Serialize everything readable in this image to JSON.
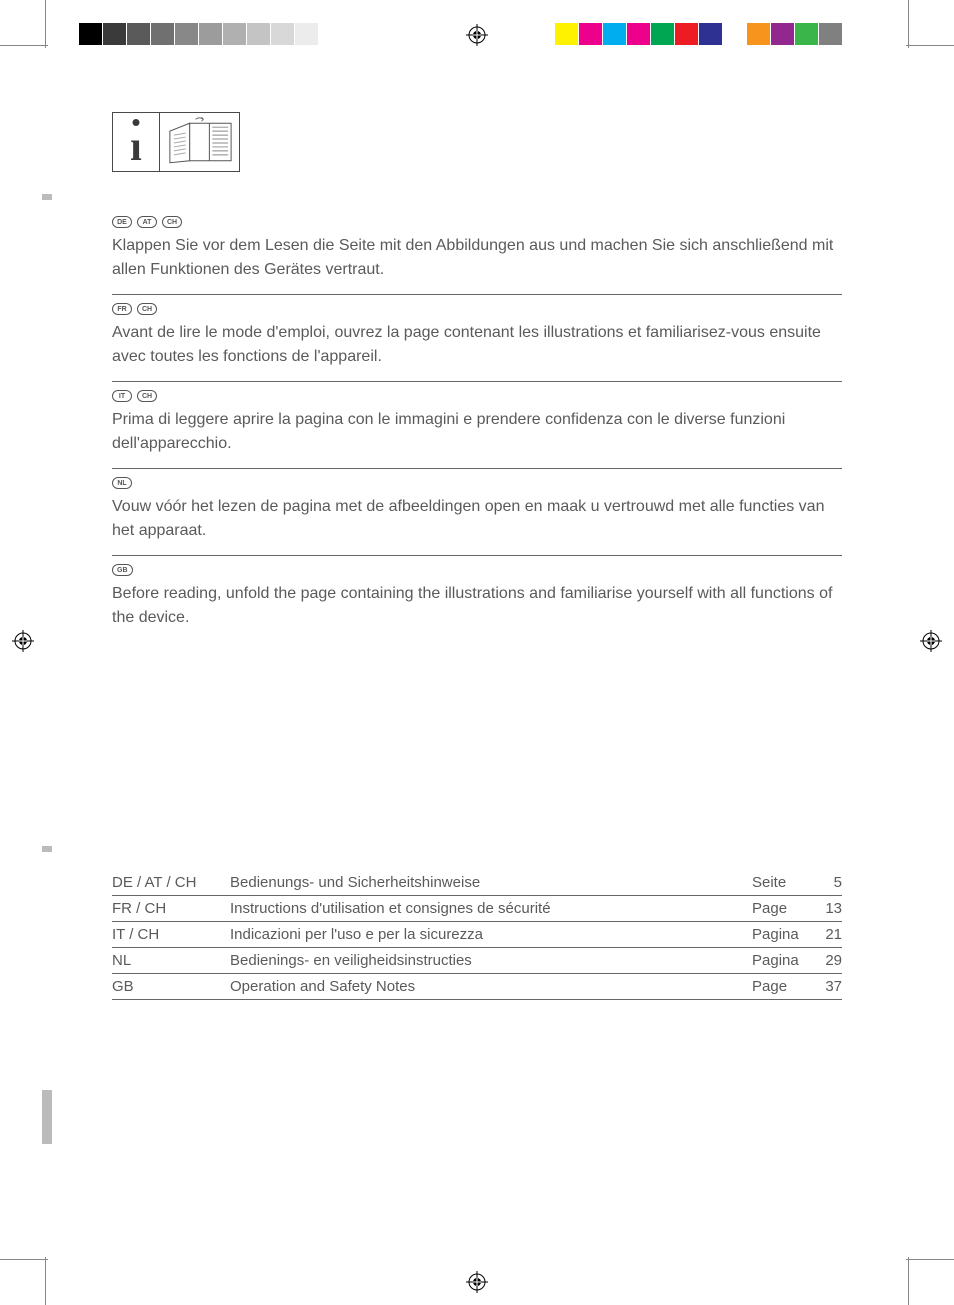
{
  "colorbar_left": [
    "#000000",
    "#3a3a3a",
    "#5a5a5a",
    "#707070",
    "#888888",
    "#9c9c9c",
    "#b0b0b0",
    "#c4c4c4",
    "#d8d8d8",
    "#ececec",
    "#ffffff",
    "#ffffff"
  ],
  "colorbar_right": [
    "#fff200",
    "#ec008c",
    "#00aeef",
    "#ec008c",
    "#00a651",
    "#ed1c24",
    "#2e3192",
    "#ffffff",
    "#f7941d",
    "#92278f",
    "#39b54a",
    "#808080"
  ],
  "blocks": [
    {
      "pills": [
        "DE",
        "AT",
        "CH"
      ],
      "text": "Klappen Sie vor dem Lesen die Seite mit den Abbildungen aus und machen Sie sich anschließend mit allen Funktionen des Gerätes vertraut."
    },
    {
      "pills": [
        "FR",
        "CH"
      ],
      "text": "Avant de lire le mode d'emploi, ouvrez la page contenant les illustrations et familiarisez-vous ensuite avec toutes les fonctions de l'appareil."
    },
    {
      "pills": [
        "IT",
        "CH"
      ],
      "text": "Prima di leggere aprire la pagina con le immagini e prendere confidenza con le diverse funzioni dell'apparecchio."
    },
    {
      "pills": [
        "NL"
      ],
      "text": "Vouw vóór het lezen de pagina met de afbeeldingen open en maak u vertrouwd met alle functies van het apparaat."
    },
    {
      "pills": [
        "GB"
      ],
      "text": "Before reading, unfold the page containing the illustrations and familiarise yourself with all functions of the device."
    }
  ],
  "toc": [
    {
      "lang": "DE / AT / CH",
      "title": "Bedienungs- und Sicherheitshinweise",
      "pagelabel": "Seite",
      "page": "5"
    },
    {
      "lang": "FR / CH",
      "title": "Instructions d'utilisation et consignes de sécurité",
      "pagelabel": "Page",
      "page": "13"
    },
    {
      "lang": "IT / CH",
      "title": "Indicazioni per l'uso e per la sicurezza",
      "pagelabel": "Pagina",
      "page": "21"
    },
    {
      "lang": "NL",
      "title": "Bedienings- en veiligheidsinstructies",
      "pagelabel": "Pagina",
      "page": "29"
    },
    {
      "lang": "GB",
      "title": "Operation and Safety Notes",
      "pagelabel": "Page",
      "page": "37"
    }
  ]
}
